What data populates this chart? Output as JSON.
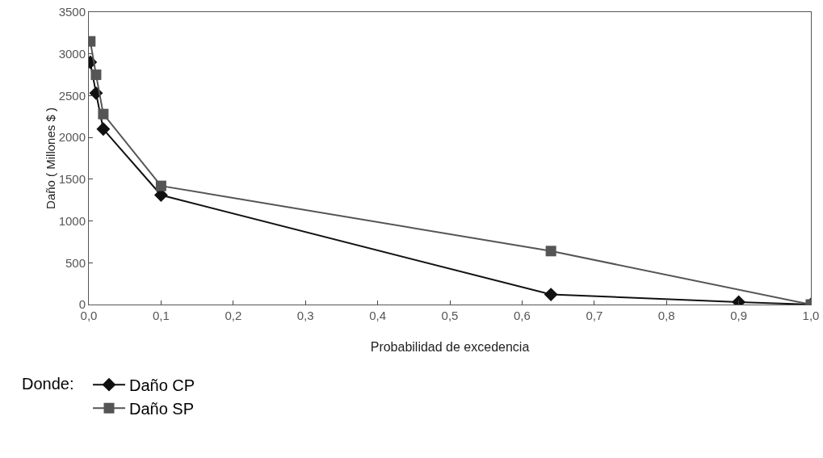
{
  "chart_data": {
    "type": "line",
    "xlabel": "Probabilidad de excedencia",
    "ylabel": "Daño ( Millones $ )",
    "series": [
      {
        "name": "Daño CP",
        "color": "#111111",
        "marker": "diamond",
        "x": [
          0.002,
          0.01,
          0.02,
          0.1,
          0.64,
          0.9,
          1.0
        ],
        "values": [
          2900,
          2530,
          2100,
          1310,
          120,
          30,
          0
        ]
      },
      {
        "name": "Daño SP",
        "color": "#555555",
        "marker": "square",
        "x": [
          0.002,
          0.01,
          0.02,
          0.1,
          0.64,
          1.0
        ],
        "values": [
          3150,
          2750,
          2280,
          1420,
          640,
          0
        ]
      }
    ],
    "xlim": [
      0,
      1
    ],
    "ylim": [
      0,
      3500
    ],
    "xticks": [
      {
        "value": 0,
        "label": "0,0"
      },
      {
        "value": 0.1,
        "label": "0,1"
      },
      {
        "value": 0.2,
        "label": "0,2"
      },
      {
        "value": 0.3,
        "label": "0,3"
      },
      {
        "value": 0.4,
        "label": "0,4"
      },
      {
        "value": 0.5,
        "label": "0,5"
      },
      {
        "value": 0.6,
        "label": "0,6"
      },
      {
        "value": 0.7,
        "label": "0,7"
      },
      {
        "value": 0.8,
        "label": "0,8"
      },
      {
        "value": 0.9,
        "label": "0,9"
      },
      {
        "value": 1,
        "label": "1,0"
      }
    ],
    "yticks": [
      0,
      500,
      1000,
      1500,
      2000,
      2500,
      3000,
      3500
    ],
    "grid": false,
    "legend": "bottom left",
    "annotations": [
      "Donde:"
    ]
  }
}
